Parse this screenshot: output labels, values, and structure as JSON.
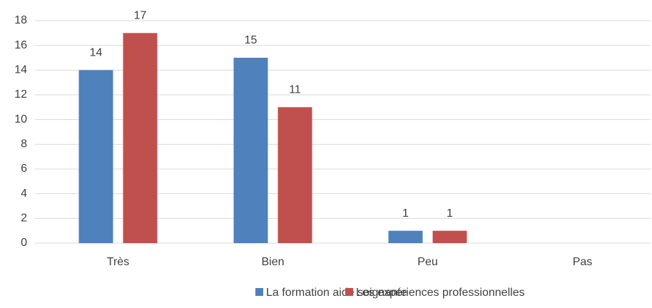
{
  "chart_data": {
    "type": "bar",
    "categories": [
      "Très",
      "Bien",
      "Peu",
      "Pas"
    ],
    "series": [
      {
        "name": "La formation aide soignante",
        "color": "#4f81bd",
        "values": [
          14,
          15,
          1,
          null
        ]
      },
      {
        "name": "Les expériences professionnelles",
        "color": "#c0504d",
        "values": [
          17,
          11,
          1,
          null
        ]
      }
    ],
    "ylim": [
      0,
      18
    ],
    "yticks": [
      0,
      2,
      4,
      6,
      8,
      10,
      12,
      14,
      16,
      18
    ],
    "grid": true,
    "legend": "bottom"
  }
}
